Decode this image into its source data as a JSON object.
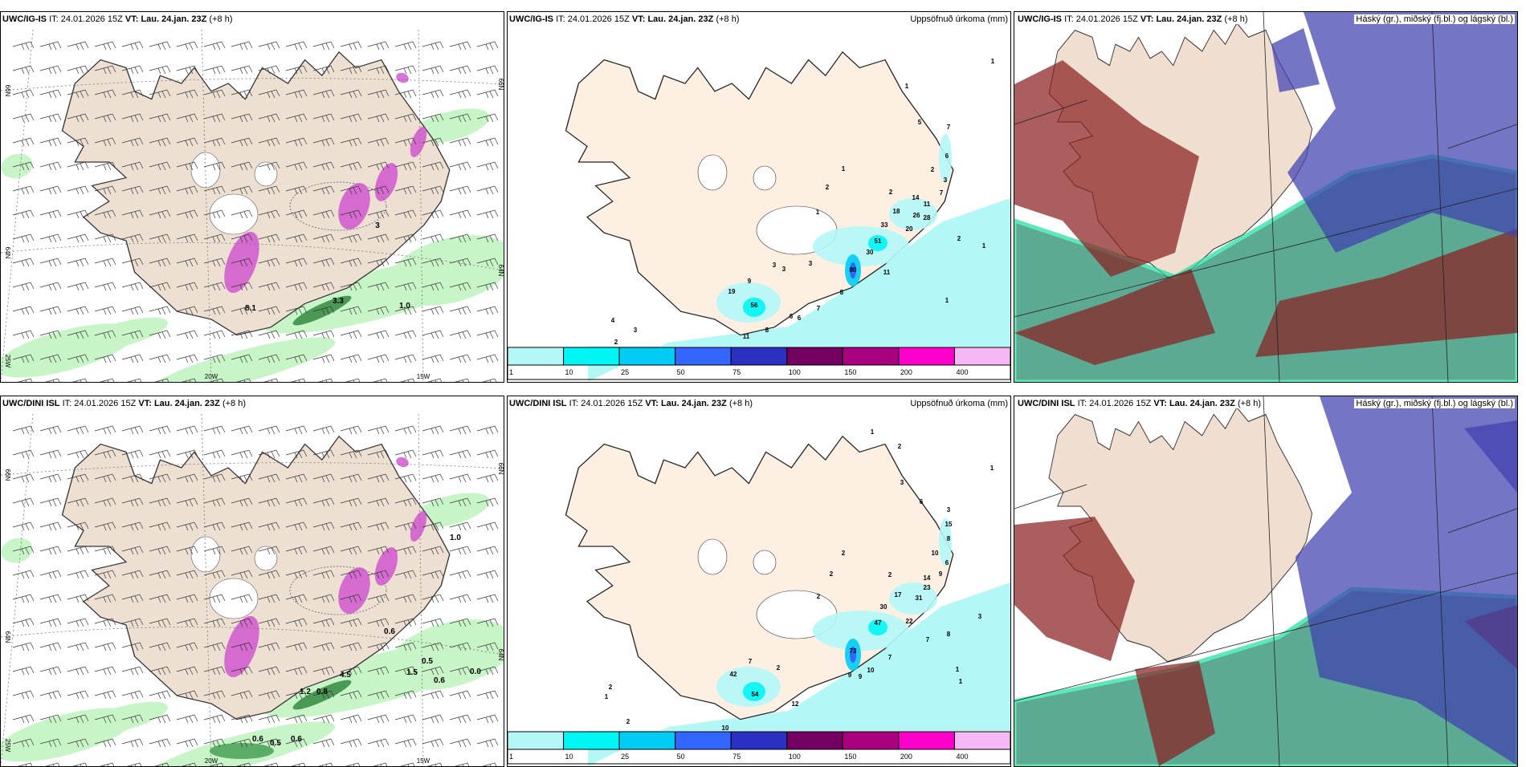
{
  "rows": [
    {
      "model": "UWC/IG-IS",
      "it_label": "IT:",
      "it_value": "24.01.2026 15Z",
      "vt_label": "VT:",
      "vt_value": "Lau. 24.jan. 23Z",
      "lead": "(+8 h)",
      "wind_labels": [
        "8.1",
        "1.0",
        "3.3",
        "3"
      ],
      "precip_labels": [
        "1",
        "2",
        "2",
        "6",
        "2",
        "3",
        "7",
        "14",
        "11",
        "18",
        "26",
        "28",
        "1",
        "33",
        "20",
        "51",
        "30",
        "2",
        "1",
        "3",
        "3",
        "3",
        "80",
        "11",
        "9",
        "19",
        "56",
        "8",
        "7",
        "1",
        "6",
        "6",
        "8",
        "11",
        "1",
        "1",
        "5",
        "7",
        "4",
        "3",
        "2"
      ]
    },
    {
      "model": "UWC/DINI ISL",
      "it_label": "IT:",
      "it_value": "24.01.2026 15Z",
      "vt_label": "VT:",
      "vt_value": "Lau. 24.jan. 23Z",
      "lead": "(+8 h)",
      "wind_labels": [
        "0.5",
        "0.6",
        "1.5",
        "0.6",
        "0.0",
        "1.2",
        "0.8",
        "4.5",
        "0.6",
        "0.5",
        "0.6",
        "1.0"
      ],
      "precip_labels": [
        "2",
        "10",
        "6",
        "2",
        "2",
        "9",
        "14",
        "23",
        "2",
        "17",
        "31",
        "30",
        "3",
        "22",
        "47",
        "8",
        "7",
        "73",
        "7",
        "7",
        "2",
        "1",
        "10",
        "9",
        "9",
        "1",
        "42",
        "54",
        "12",
        "1",
        "2",
        "1",
        "3",
        "6",
        "3",
        "15",
        "8",
        "2",
        "1",
        "2",
        "10"
      ]
    }
  ],
  "axis_labels": {
    "lat_north": "66N",
    "lat_south": "64N",
    "lon_west": "25W",
    "lon_mid": "20W",
    "lon_east": "15W"
  },
  "precip_title": "Uppsöfnuð úrkoma (mm)",
  "cloud_title": "Háský (gr.), miðský (fj.bl.) og lágský (bl.)",
  "legend": {
    "ticks": [
      "1",
      "10",
      "25",
      "50",
      "75",
      "100",
      "150",
      "200",
      "400"
    ],
    "colors": [
      "#b3f7f7",
      "#00f5f5",
      "#00ccf5",
      "#3366ff",
      "#2b2fc2",
      "#730060",
      "#a8007f",
      "#ff00cc",
      "#f5b8f5"
    ]
  },
  "colors": {
    "land": "#ede0d3",
    "land_precip": "#fdf0e3",
    "wind_green": "#c8f5c8",
    "wind_dark": "#2e7d3a",
    "pink": "#cc44cc",
    "high": "#8a2020",
    "mid": "#4040b0",
    "low": "#1e8a6a",
    "low_edge": "#20e0a0"
  }
}
